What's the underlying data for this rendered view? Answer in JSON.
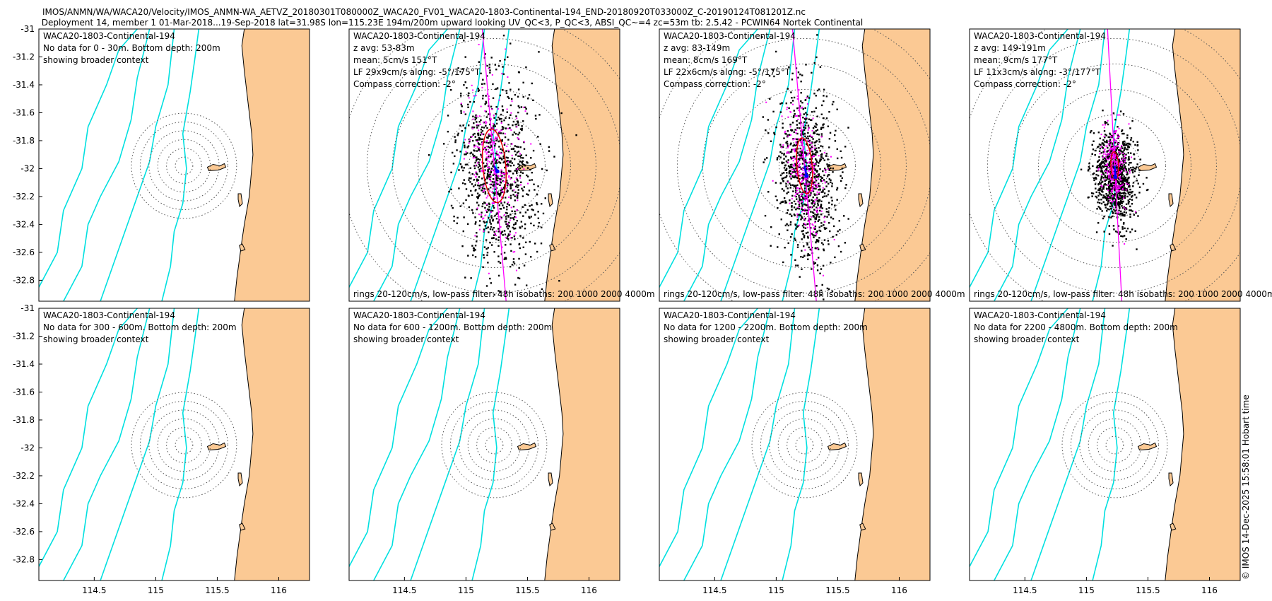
{
  "header": {
    "line1": "IMOS/ANMN/WA/WACA20/Velocity/IMOS_ANMN-WA_AETVZ_20180301T080000Z_WACA20_FV01_WACA20-1803-Continental-194_END-20180920T033000Z_C-20190124T081201Z.nc",
    "line2": "Deployment 14, member 1 01-Mar-2018...19-Sep-2018 lat=31.98S lon=115.23E 194m/200m upward looking UV_QC<3, P_QC<3, ABSI_QC~=4 zc=53m tb: 2.5.42 - PCWIN64 Nortek Continental"
  },
  "credit": "© IMOS 14-Dec-2025 15:58:01 Hobart time",
  "colors": {
    "land": "#fbc994",
    "isobath": "#00e0e0",
    "ellipse": "#e00000",
    "magenta": "#ff00ff",
    "mean": "#0000ff"
  },
  "chart_data": {
    "type": "scatter",
    "xlim": [
      114.05,
      116.25
    ],
    "ylim": [
      -32.95,
      -31.0
    ],
    "xticks": [
      114.5,
      115,
      115.5,
      116
    ],
    "xtick_labels": [
      "114.5",
      "115",
      "115.5",
      "116"
    ],
    "yticks": [
      -31,
      -31.2,
      -31.4,
      -31.6,
      -31.8,
      -32,
      -32.2,
      -32.4,
      -32.6,
      -32.8
    ],
    "ytick_labels": [
      "-31",
      "-31.2",
      "-31.4",
      "-31.6",
      "-31.8",
      "-32",
      "-32.2",
      "-32.4",
      "-32.6",
      "-32.8"
    ],
    "mooring": {
      "lon": 115.23,
      "lat": -31.98
    },
    "ring_speeds_cm_s": [
      20,
      40,
      60,
      80,
      100,
      120
    ],
    "panels": [
      {
        "id": "p1",
        "lines": [
          "WACA20-1803-Continental-194",
          "No data for 0 - 30m. Bottom depth: 200m",
          "showing broader context"
        ],
        "has_data": false
      },
      {
        "id": "p2",
        "lines": [
          "WACA20-1803-Continental-194",
          "z avg: 53-83m",
          "mean: 5cm/s 151°T",
          "LF 29x9cm/s along: -5°/175°T",
          "Compass correction: -2°"
        ],
        "has_data": true,
        "footer": "rings 20-120cm/s, low-pass filter: 48h isobaths: 200 1000 2000 4000m",
        "mean_speed": 5,
        "mean_dir": 151,
        "ellipse_major": 29,
        "ellipse_minor": 9,
        "ellipse_dir": 175,
        "spread_major": 40,
        "spread_minor": 16
      },
      {
        "id": "p3",
        "lines": [
          "WACA20-1803-Continental-194",
          "z avg: 83-149m",
          "mean: 8cm/s 169°T",
          "LF 22x6cm/s along: -5°/175°T",
          "Compass correction: -2°"
        ],
        "has_data": true,
        "footer": "rings 20-120cm/s, low-pass filter: 48h isobaths: 200 1000 2000 4000m",
        "mean_speed": 8,
        "mean_dir": 169,
        "ellipse_major": 22,
        "ellipse_minor": 6,
        "ellipse_dir": 175,
        "spread_major": 33,
        "spread_minor": 12
      },
      {
        "id": "p4",
        "lines": [
          "WACA20-1803-Continental-194",
          "z avg: 149-191m",
          "mean: 9cm/s 177°T",
          "LF 11x3cm/s along: -3°/177°T",
          "Compass correction: -2°"
        ],
        "has_data": true,
        "footer": "rings 20-120cm/s, low-pass filter: 48h isobaths: 200 1000 2000 4000m",
        "mean_speed": 9,
        "mean_dir": 177,
        "ellipse_major": 11,
        "ellipse_minor": 3,
        "ellipse_dir": 177,
        "spread_major": 18,
        "spread_minor": 8
      },
      {
        "id": "p5",
        "lines": [
          "WACA20-1803-Continental-194",
          "No data for 300 - 600m. Bottom depth: 200m",
          "showing broader context"
        ],
        "has_data": false
      },
      {
        "id": "p6",
        "lines": [
          "WACA20-1803-Continental-194",
          "No data for 600 - 1200m. Bottom depth: 200m",
          "showing broader context"
        ],
        "has_data": false
      },
      {
        "id": "p7",
        "lines": [
          "WACA20-1803-Continental-194",
          "No data for 1200 - 2200m. Bottom depth: 200m",
          "showing broader context"
        ],
        "has_data": false
      },
      {
        "id": "p8",
        "lines": [
          "WACA20-1803-Continental-194",
          "No data for 2200 - 4800m. Bottom depth: 200m",
          "showing broader context"
        ],
        "has_data": false
      }
    ]
  }
}
